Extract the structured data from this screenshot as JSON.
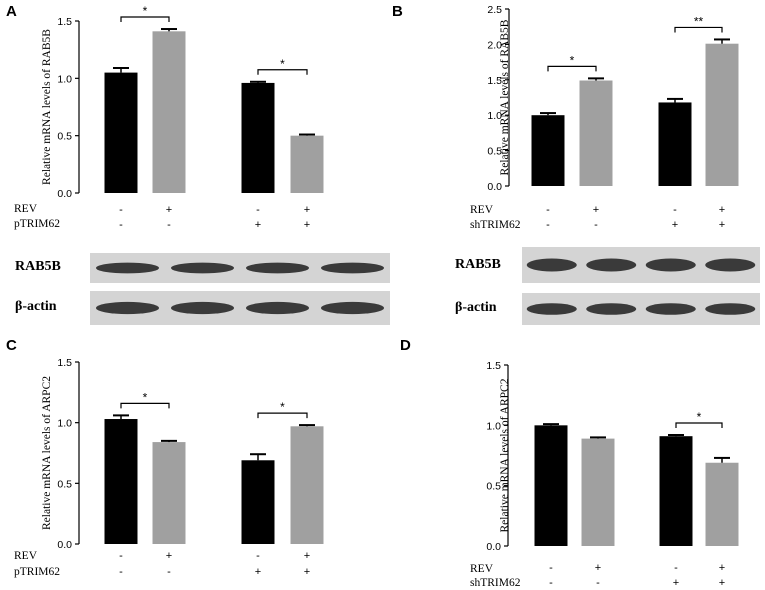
{
  "chart_data": [
    {
      "panel": "A",
      "type": "bar",
      "ylabel": "Relative mRNA levels of RAB5B",
      "ylim": [
        0,
        1.5
      ],
      "yticks": [
        "0.0",
        "0.5",
        "1.0",
        "1.5"
      ],
      "bars": [
        {
          "value": 1.05,
          "error": 0.04,
          "color": "#000000"
        },
        {
          "value": 1.41,
          "error": 0.02,
          "color": "#a0a0a0"
        },
        {
          "value": 0.96,
          "error": 0.01,
          "color": "#000000"
        },
        {
          "value": 0.5,
          "error": 0.01,
          "color": "#a0a0a0"
        }
      ],
      "significance": [
        {
          "from": 0,
          "to": 1,
          "label": "*"
        },
        {
          "from": 2,
          "to": 3,
          "label": "*"
        }
      ],
      "rows": [
        {
          "label": "REV",
          "signs": [
            "-",
            "+",
            "-",
            "+"
          ]
        },
        {
          "label": "pTRIM62",
          "signs": [
            "-",
            "-",
            "+",
            "+"
          ]
        }
      ],
      "blots": [
        "RAB5B",
        "β-actin"
      ]
    },
    {
      "panel": "B",
      "type": "bar",
      "ylabel": "Relative mRNA levels of RAB5B",
      "ylim": [
        0,
        2.5
      ],
      "yticks": [
        "0.0",
        "0.5",
        "1.0",
        "1.5",
        "2.0",
        "2.5"
      ],
      "bars": [
        {
          "value": 1.0,
          "error": 0.03,
          "color": "#000000"
        },
        {
          "value": 1.49,
          "error": 0.03,
          "color": "#a0a0a0"
        },
        {
          "value": 1.18,
          "error": 0.05,
          "color": "#000000"
        },
        {
          "value": 2.01,
          "error": 0.06,
          "color": "#a0a0a0"
        }
      ],
      "significance": [
        {
          "from": 0,
          "to": 1,
          "label": "*"
        },
        {
          "from": 2,
          "to": 3,
          "label": "**"
        }
      ],
      "rows": [
        {
          "label": "REV",
          "signs": [
            "-",
            "+",
            "-",
            "+"
          ]
        },
        {
          "label": "shTRIM62",
          "signs": [
            "-",
            "-",
            "+",
            "+"
          ]
        }
      ],
      "blots": [
        "RAB5B",
        "β-actin"
      ]
    },
    {
      "panel": "C",
      "type": "bar",
      "ylabel": "Relative mRNA levels of ARPC2",
      "ylim": [
        0,
        1.5
      ],
      "yticks": [
        "0.0",
        "0.5",
        "1.0",
        "1.5"
      ],
      "bars": [
        {
          "value": 1.03,
          "error": 0.03,
          "color": "#000000"
        },
        {
          "value": 0.84,
          "error": 0.01,
          "color": "#a0a0a0"
        },
        {
          "value": 0.69,
          "error": 0.05,
          "color": "#000000"
        },
        {
          "value": 0.97,
          "error": 0.01,
          "color": "#a0a0a0"
        }
      ],
      "significance": [
        {
          "from": 0,
          "to": 1,
          "label": "*"
        },
        {
          "from": 2,
          "to": 3,
          "label": "*"
        }
      ],
      "rows": [
        {
          "label": "REV",
          "signs": [
            "-",
            "+",
            "-",
            "+"
          ]
        },
        {
          "label": "pTRIM62",
          "signs": [
            "-",
            "-",
            "+",
            "+"
          ]
        }
      ]
    },
    {
      "panel": "D",
      "type": "bar",
      "ylabel": "Relative mRNA levels of ARPC2",
      "ylim": [
        0,
        1.5
      ],
      "yticks": [
        "0.0",
        "0.5",
        "1.0",
        "1.5"
      ],
      "bars": [
        {
          "value": 1.0,
          "error": 0.01,
          "color": "#000000"
        },
        {
          "value": 0.89,
          "error": 0.01,
          "color": "#a0a0a0"
        },
        {
          "value": 0.91,
          "error": 0.01,
          "color": "#000000"
        },
        {
          "value": 0.69,
          "error": 0.04,
          "color": "#a0a0a0"
        }
      ],
      "significance": [
        {
          "from": 2,
          "to": 3,
          "label": "*"
        }
      ],
      "rows": [
        {
          "label": "REV",
          "signs": [
            "-",
            "+",
            "-",
            "+"
          ]
        },
        {
          "label": "shTRIM62",
          "signs": [
            "-",
            "-",
            "+",
            "+"
          ]
        }
      ]
    }
  ]
}
